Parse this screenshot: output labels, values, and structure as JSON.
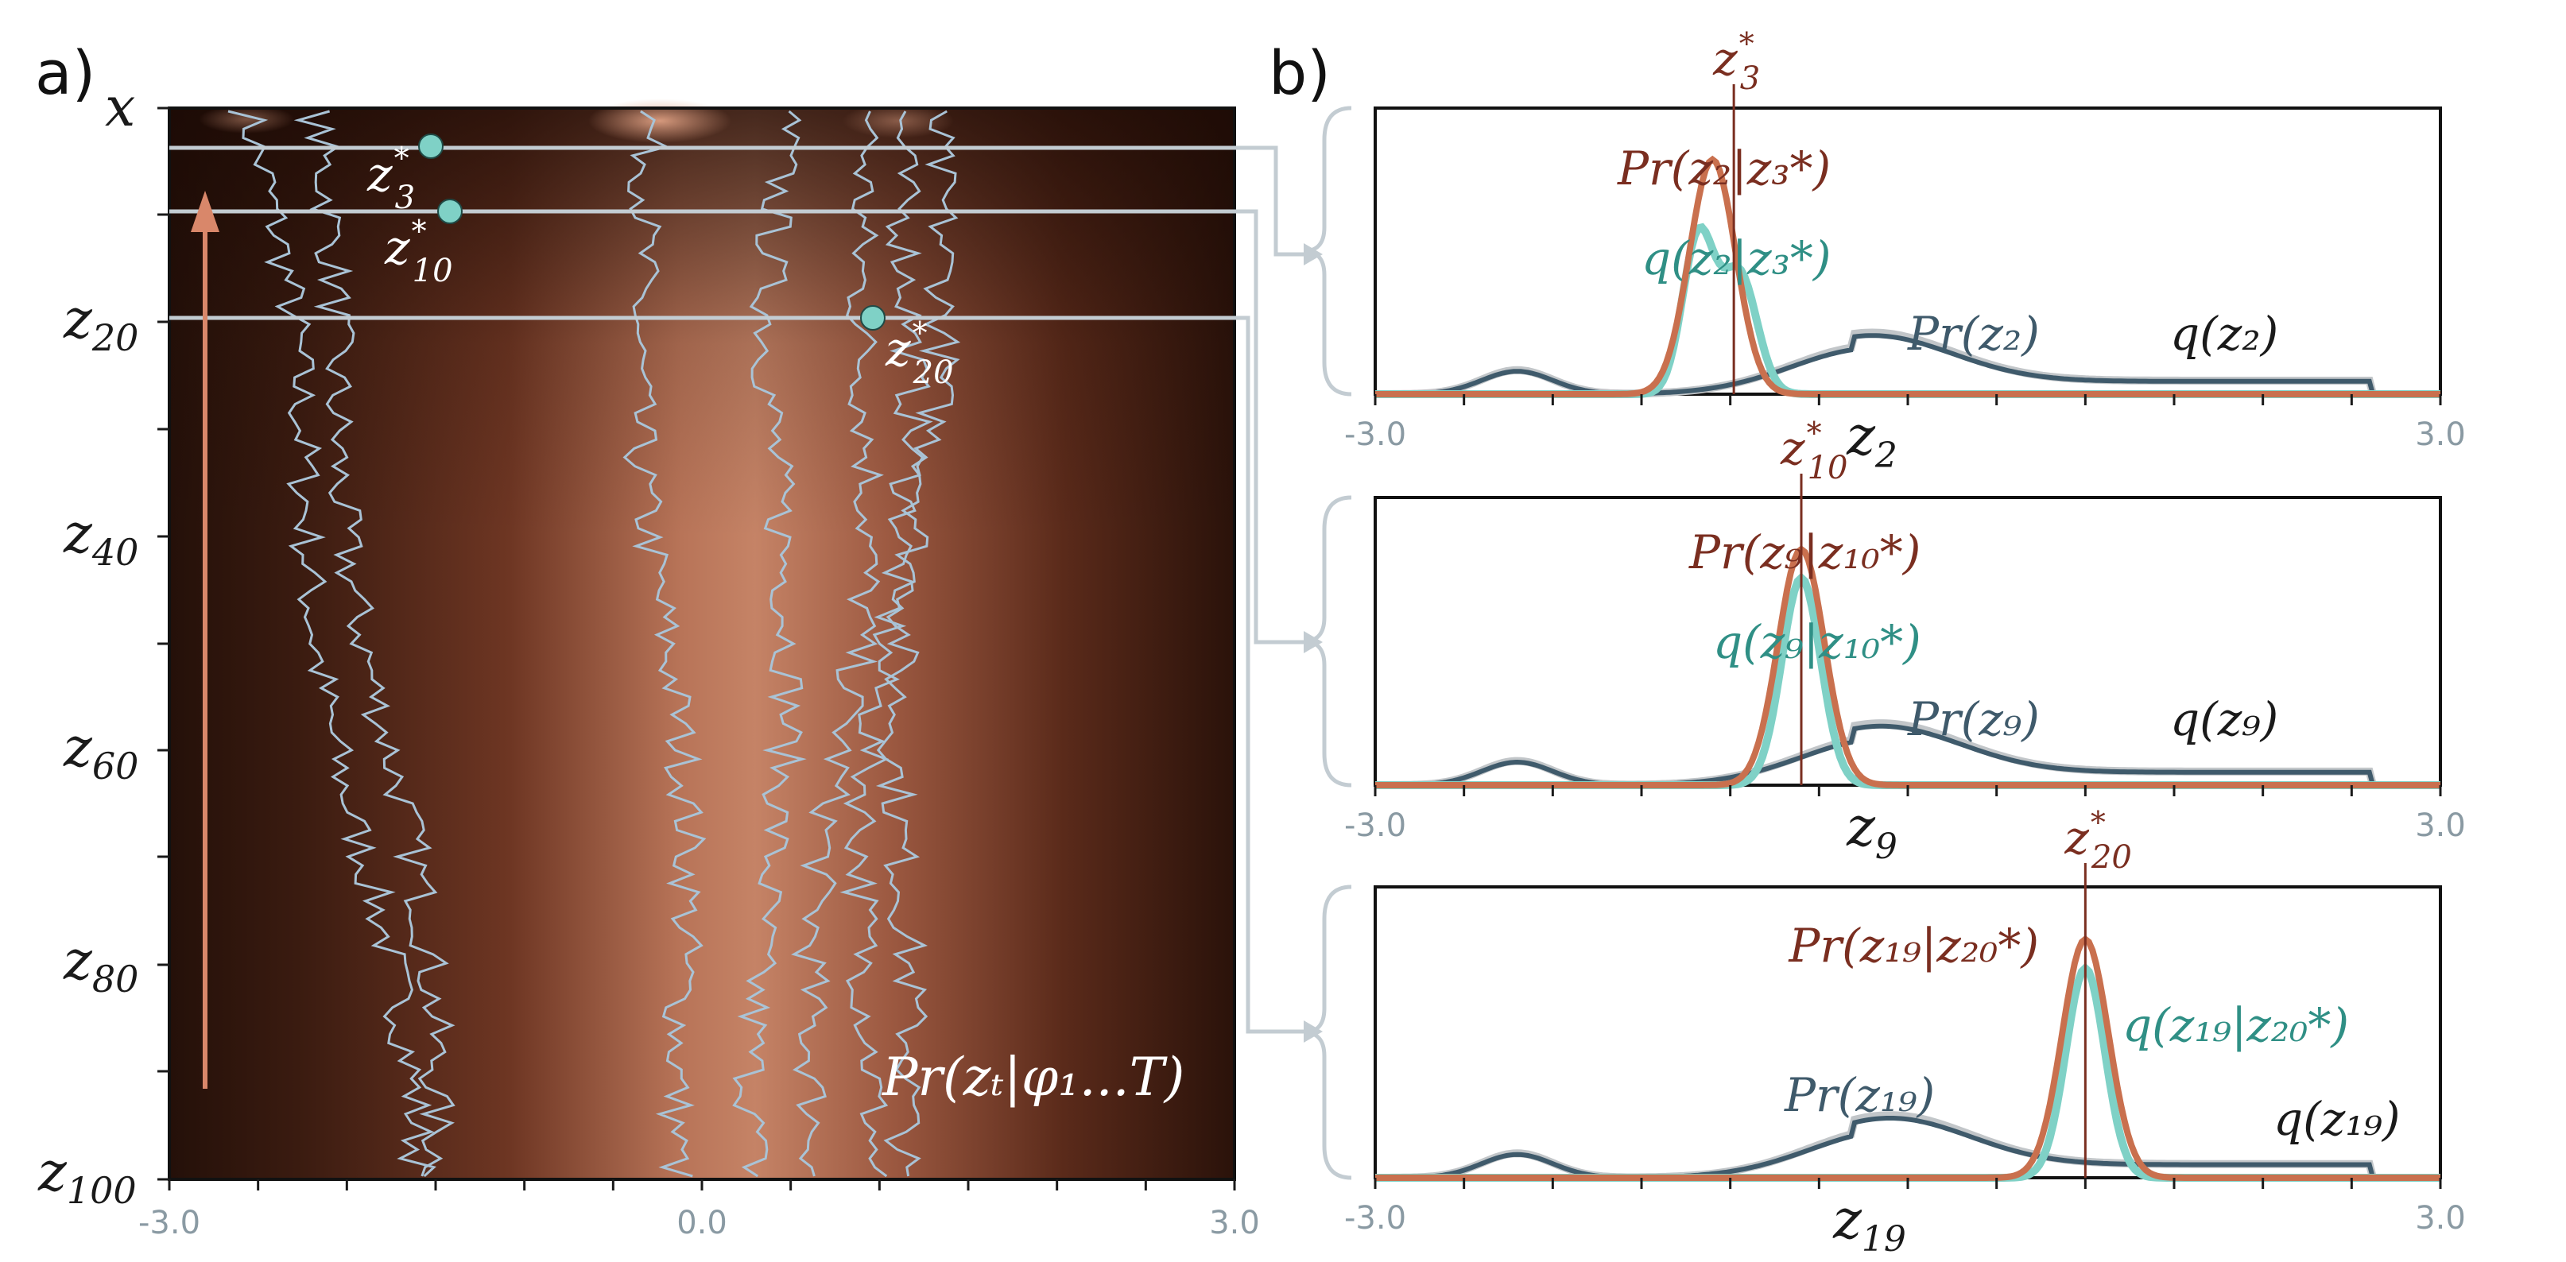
{
  "figure": {
    "panel_a_label": "a)",
    "panel_b_label": "b)",
    "a_row_top": "x",
    "a_rows": [
      {
        "base": "z",
        "sub": "20"
      },
      {
        "base": "z",
        "sub": "40"
      },
      {
        "base": "z",
        "sub": "60"
      },
      {
        "base": "z",
        "sub": "80"
      },
      {
        "base": "z",
        "sub": "100"
      }
    ],
    "a_xticks": [
      "-3.0",
      "0.0",
      "3.0"
    ],
    "a_density_label": "Pr(zₜ|φ₁...T)",
    "a_samples": [
      {
        "base": "z",
        "sub": "3",
        "sup": "*"
      },
      {
        "base": "z",
        "sub": "10",
        "sup": "*"
      },
      {
        "base": "z",
        "sub": "20",
        "sup": "*"
      }
    ],
    "b_xticks": [
      "-3.0",
      "3.0"
    ],
    "b_panels": [
      {
        "observed": {
          "base": "z",
          "sub": "3",
          "sup": "*"
        },
        "axis": {
          "base": "z",
          "sub": "2"
        },
        "cond_true": "Pr(z₂|z₃*)",
        "cond_approx": "q(z₂|z₃*)",
        "prior_true": "Pr(z₂)",
        "prior_approx": "q(z₂)"
      },
      {
        "observed": {
          "base": "z",
          "sub": "10",
          "sup": "*"
        },
        "axis": {
          "base": "z",
          "sub": "9"
        },
        "cond_true": "Pr(z₉|z₁₀*)",
        "cond_approx": "q(z₉|z₁₀*)",
        "prior_true": "Pr(z₉)",
        "prior_approx": "q(z₉)"
      },
      {
        "observed": {
          "base": "z",
          "sub": "20",
          "sup": "*"
        },
        "axis": {
          "base": "z",
          "sub": "19"
        },
        "cond_true": "Pr(z₁₉|z₂₀*)",
        "cond_approx": "q(z₁₉|z₂₀*)",
        "prior_true": "Pr(z₁₉)",
        "prior_approx": "q(z₁₉)"
      }
    ],
    "colors": {
      "orange": "#c9704e",
      "teal": "#7fd1c6",
      "slate": "#3f5a6b",
      "gray": "#c2c6c9",
      "brown": "#7a2e20",
      "trace": "#a9c3d6"
    }
  }
}
